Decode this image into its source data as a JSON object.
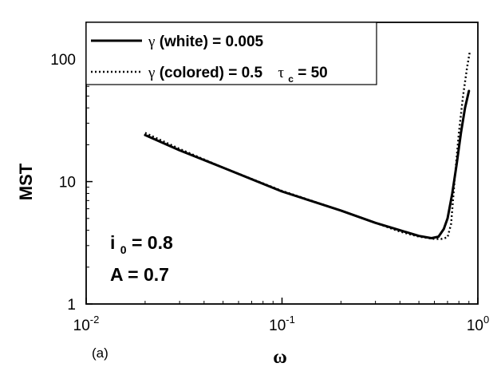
{
  "chart_data": {
    "type": "line",
    "title": "",
    "xlabel": "ω",
    "ylabel": "MST",
    "xscale": "log",
    "yscale": "log",
    "xlim": [
      0.01,
      1
    ],
    "ylim": [
      1,
      200
    ],
    "x_ticks": [
      {
        "value": 0.01,
        "base": "10",
        "exp": "-2"
      },
      {
        "value": 0.1,
        "base": "10",
        "exp": "-1"
      },
      {
        "value": 1,
        "base": "10",
        "exp": "0"
      }
    ],
    "y_ticks": [
      {
        "value": 1,
        "label": "1"
      },
      {
        "value": 10,
        "label": "10"
      },
      {
        "value": 100,
        "label": "100"
      }
    ],
    "grid": false,
    "legend_position": "top-left",
    "legend": [
      {
        "style": "solid",
        "greek": "γ",
        "text": " (white) = 0.005"
      },
      {
        "style": "dotted",
        "greek": "γ",
        "text": " (colored) = 0.5",
        "tau_symbol": "τ",
        "tau_sub": "c",
        "tau_value": " = 50"
      }
    ],
    "annotations": {
      "i0_symbol": "i",
      "i0_sub": "0",
      "i0_value": " = 0.8",
      "A_text": "A = 0.7"
    },
    "panel_label": "(a)",
    "series": [
      {
        "style": "solid",
        "x": [
          0.02,
          0.03,
          0.05,
          0.1,
          0.2,
          0.3,
          0.4,
          0.5,
          0.58,
          0.63,
          0.67,
          0.7,
          0.74,
          0.78,
          0.82,
          0.86,
          0.9
        ],
        "y": [
          24,
          18,
          13,
          8.3,
          5.8,
          4.6,
          4.0,
          3.6,
          3.45,
          3.55,
          4.1,
          5.0,
          8,
          14,
          25,
          40,
          55
        ]
      },
      {
        "style": "dotted",
        "x": [
          0.02,
          0.03,
          0.05,
          0.1,
          0.2,
          0.3,
          0.4,
          0.5,
          0.6,
          0.65,
          0.7,
          0.73,
          0.76,
          0.8,
          0.84,
          0.88,
          0.91
        ],
        "y": [
          25,
          18.5,
          13,
          8.4,
          5.8,
          4.6,
          3.9,
          3.55,
          3.4,
          3.4,
          3.5,
          4.5,
          10,
          25,
          50,
          85,
          115
        ]
      }
    ]
  }
}
